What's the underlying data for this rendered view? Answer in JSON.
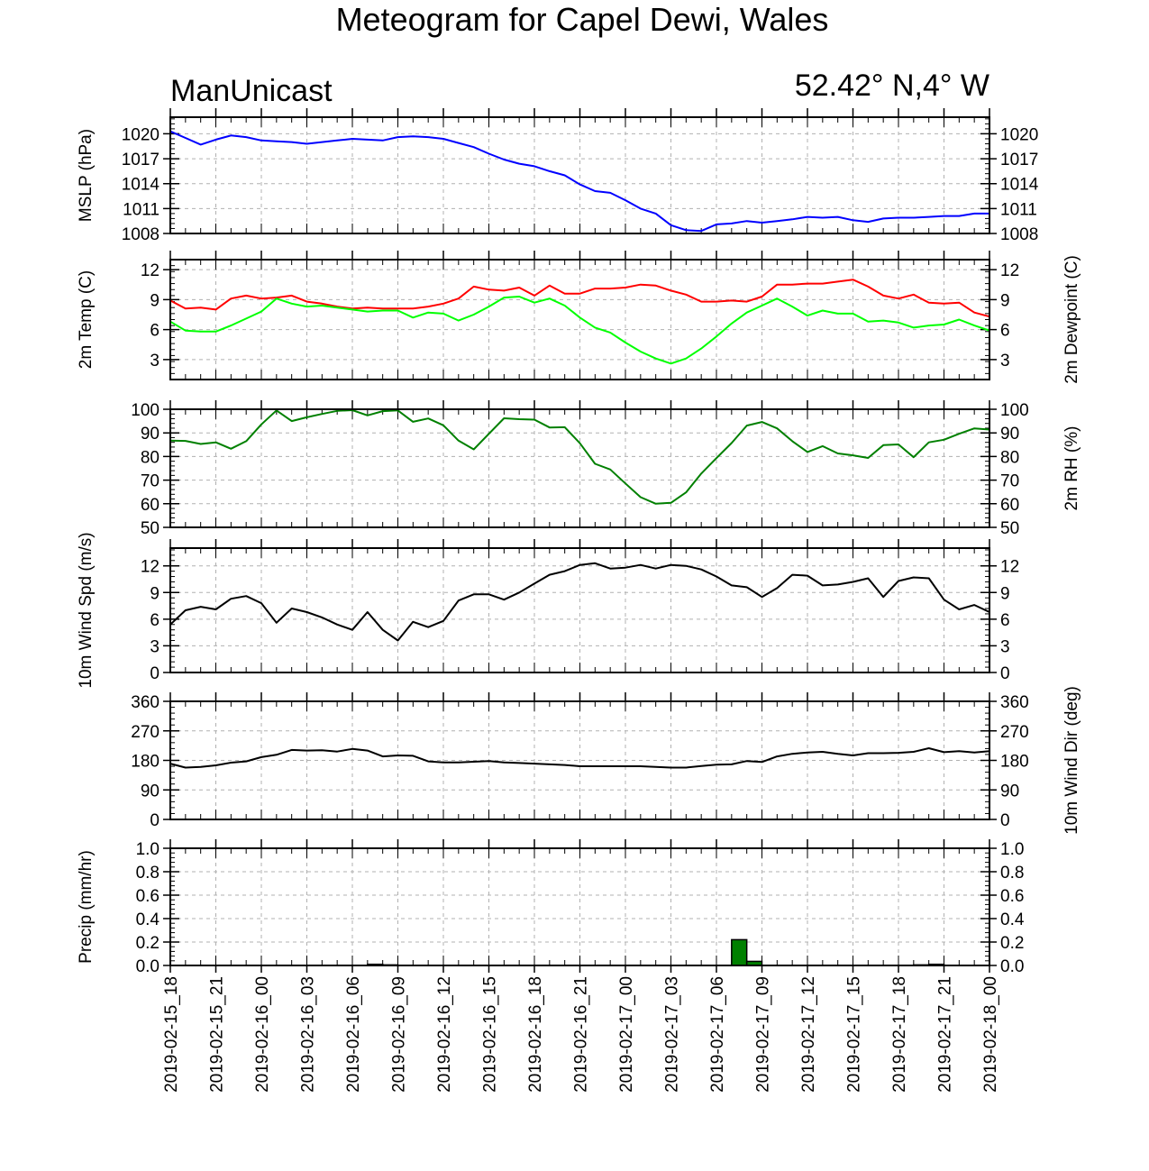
{
  "title": "Meteogram for Capel Dewi, Wales",
  "model_label": "ManUnicast",
  "location_label": "52.42° N,4° W",
  "x_tick_labels": [
    "2019-02-15_18",
    "2019-02-15_21",
    "2019-02-16_00",
    "2019-02-16_03",
    "2019-02-16_06",
    "2019-02-16_09",
    "2019-02-16_12",
    "2019-02-16_15",
    "2019-02-16_18",
    "2019-02-16_21",
    "2019-02-17_00",
    "2019-02-17_03",
    "2019-02-17_06",
    "2019-02-17_09",
    "2019-02-17_12",
    "2019-02-17_15",
    "2019-02-17_18",
    "2019-02-17_21",
    "2019-02-18_00"
  ],
  "chart_data": [
    {
      "type": "line",
      "panel": "mslp",
      "ylabel": "MSLP (hPa)",
      "ylabel_right": "",
      "ylim": [
        1008,
        1022
      ],
      "yticks": [
        1008,
        1011,
        1014,
        1017,
        1020
      ],
      "grid": true,
      "x_hours": [
        0,
        1,
        2,
        3,
        4,
        5,
        6,
        7,
        8,
        9,
        10,
        11,
        12,
        13,
        14,
        15,
        16,
        17,
        18,
        19,
        20,
        21,
        22,
        23,
        24,
        25,
        26,
        27,
        28,
        29,
        30,
        31,
        32,
        33,
        34,
        35,
        36,
        37,
        38,
        39,
        40,
        41,
        42,
        43,
        44,
        45,
        46,
        47,
        48,
        49,
        50,
        51,
        52,
        53,
        54
      ],
      "series": [
        {
          "color": "#0000ff",
          "values": [
            1020.3,
            1019.5,
            1018.7,
            1019.3,
            1019.8,
            1019.6,
            1019.2,
            1019.1,
            1019.0,
            1018.8,
            1019.0,
            1019.2,
            1019.4,
            1019.3,
            1019.2,
            1019.6,
            1019.7,
            1019.6,
            1019.4,
            1018.9,
            1018.4,
            1017.6,
            1016.9,
            1016.4,
            1016.1,
            1015.5,
            1015.0,
            1013.9,
            1013.1,
            1012.9,
            1012.0,
            1011.0,
            1010.4,
            1009.0,
            1008.4,
            1008.3,
            1009.1,
            1009.2,
            1009.5,
            1009.3,
            1009.5,
            1009.7,
            1010.0,
            1009.9,
            1010.0,
            1009.6,
            1009.4,
            1009.8,
            1009.9,
            1009.9,
            1010.0,
            1010.1,
            1010.1,
            1010.4,
            1010.4
          ]
        }
      ]
    },
    {
      "type": "line",
      "panel": "temperature",
      "ylabel": "2m Temp (C)",
      "ylabel_right": "2m Dewpoint (C)",
      "ylim": [
        1,
        13
      ],
      "yticks": [
        3,
        6,
        9,
        12
      ],
      "grid": true,
      "x_hours": [
        0,
        1,
        2,
        3,
        4,
        5,
        6,
        7,
        8,
        9,
        10,
        11,
        12,
        13,
        14,
        15,
        16,
        17,
        18,
        19,
        20,
        21,
        22,
        23,
        24,
        25,
        26,
        27,
        28,
        29,
        30,
        31,
        32,
        33,
        34,
        35,
        36,
        37,
        38,
        39,
        40,
        41,
        42,
        43,
        44,
        45,
        46,
        47,
        48,
        49,
        50,
        51,
        52,
        53,
        54
      ],
      "series": [
        {
          "color": "#ff0000",
          "values": [
            8.9,
            8.1,
            8.2,
            8.0,
            9.1,
            9.4,
            9.1,
            9.2,
            9.4,
            8.8,
            8.6,
            8.3,
            8.1,
            8.2,
            8.1,
            8.1,
            8.1,
            8.3,
            8.6,
            9.1,
            10.3,
            10.0,
            9.9,
            10.2,
            9.4,
            10.4,
            9.6,
            9.6,
            10.1,
            10.1,
            10.2,
            10.5,
            10.4,
            9.9,
            9.5,
            8.8,
            8.8,
            8.9,
            8.8,
            9.3,
            10.5,
            10.5,
            10.6,
            10.6,
            10.8,
            11.0,
            10.3,
            9.4,
            9.1,
            9.5,
            8.7,
            8.6,
            8.7,
            7.7,
            7.3
          ]
        },
        {
          "color": "#00ff00",
          "values": [
            6.8,
            5.9,
            5.8,
            5.8,
            6.4,
            7.1,
            7.8,
            9.1,
            8.6,
            8.3,
            8.4,
            8.2,
            8.0,
            7.8,
            7.9,
            7.9,
            7.2,
            7.7,
            7.6,
            6.9,
            7.5,
            8.3,
            9.2,
            9.3,
            8.7,
            9.1,
            8.4,
            7.2,
            6.2,
            5.7,
            4.7,
            3.8,
            3.1,
            2.6,
            3.1,
            4.1,
            5.3,
            6.6,
            7.7,
            8.4,
            9.1,
            8.3,
            7.4,
            7.9,
            7.6,
            7.6,
            6.8,
            6.9,
            6.7,
            6.2,
            6.4,
            6.5,
            7.0,
            6.4,
            5.9
          ]
        }
      ]
    },
    {
      "type": "line",
      "panel": "relative_humidity",
      "ylabel": "",
      "ylabel_right": "2m RH (%)",
      "ylim": [
        50,
        100
      ],
      "yticks": [
        50,
        60,
        70,
        80,
        90,
        100
      ],
      "grid": true,
      "x_hours": [
        0,
        1,
        2,
        3,
        4,
        5,
        6,
        7,
        8,
        9,
        10,
        11,
        12,
        13,
        14,
        15,
        16,
        17,
        18,
        19,
        20,
        21,
        22,
        23,
        24,
        25,
        26,
        27,
        28,
        29,
        30,
        31,
        32,
        33,
        34,
        35,
        36,
        37,
        38,
        39,
        40,
        41,
        42,
        43,
        44,
        45,
        46,
        47,
        48,
        49,
        50,
        51,
        52,
        53,
        54
      ],
      "series": [
        {
          "color": "#008000",
          "values": [
            86.7,
            86.6,
            85.3,
            86.0,
            83.3,
            86.5,
            93.6,
            99.5,
            95.0,
            96.6,
            98.0,
            99.3,
            99.6,
            97.4,
            99.2,
            99.5,
            94.7,
            96.1,
            93.2,
            86.7,
            83.0,
            89.6,
            96.2,
            95.8,
            95.6,
            92.3,
            92.4,
            85.6,
            76.9,
            74.5,
            68.6,
            62.8,
            60.0,
            60.4,
            64.8,
            72.8,
            79.3,
            85.7,
            93.1,
            94.6,
            91.9,
            86.5,
            81.9,
            84.4,
            81.3,
            80.5,
            79.4,
            84.8,
            85.1,
            79.7,
            86.0,
            87.1,
            89.6,
            91.9,
            91.4
          ]
        }
      ]
    },
    {
      "type": "line",
      "panel": "wind_speed",
      "ylabel": "10m Wind Spd (m/s)",
      "ylabel_right": "",
      "ylim": [
        0,
        14
      ],
      "yticks": [
        0,
        3,
        6,
        9,
        12
      ],
      "grid": true,
      "x_hours": [
        0,
        1,
        2,
        3,
        4,
        5,
        6,
        7,
        8,
        9,
        10,
        11,
        12,
        13,
        14,
        15,
        16,
        17,
        18,
        19,
        20,
        21,
        22,
        23,
        24,
        25,
        26,
        27,
        28,
        29,
        30,
        31,
        32,
        33,
        34,
        35,
        36,
        37,
        38,
        39,
        40,
        41,
        42,
        43,
        44,
        45,
        46,
        47,
        48,
        49,
        50,
        51,
        52,
        53,
        54
      ],
      "series": [
        {
          "color": "#000000",
          "values": [
            5.4,
            7.0,
            7.4,
            7.1,
            8.3,
            8.6,
            7.8,
            5.6,
            7.2,
            6.8,
            6.2,
            5.4,
            4.8,
            6.8,
            4.8,
            3.6,
            5.7,
            5.1,
            5.8,
            8.1,
            8.8,
            8.8,
            8.2,
            9.0,
            10.0,
            11.0,
            11.4,
            12.1,
            12.3,
            11.7,
            11.8,
            12.1,
            11.7,
            12.1,
            12.0,
            11.6,
            10.8,
            9.8,
            9.6,
            8.5,
            9.5,
            11.0,
            10.9,
            9.8,
            9.9,
            10.2,
            10.6,
            8.5,
            10.3,
            10.7,
            10.6,
            8.2,
            7.1,
            7.6,
            6.8
          ]
        }
      ]
    },
    {
      "type": "line",
      "panel": "wind_direction",
      "ylabel": "",
      "ylabel_right": "10m Wind Dir (deg)",
      "ylim": [
        0,
        360
      ],
      "yticks": [
        0,
        90,
        180,
        270,
        360
      ],
      "grid": true,
      "x_hours": [
        0,
        1,
        2,
        3,
        4,
        5,
        6,
        7,
        8,
        9,
        10,
        11,
        12,
        13,
        14,
        15,
        16,
        17,
        18,
        19,
        20,
        21,
        22,
        23,
        24,
        25,
        26,
        27,
        28,
        29,
        30,
        31,
        32,
        33,
        34,
        35,
        36,
        37,
        38,
        39,
        40,
        41,
        42,
        43,
        44,
        45,
        46,
        47,
        48,
        49,
        50,
        51,
        52,
        53,
        54
      ],
      "series": [
        {
          "color": "#000000",
          "values": [
            170,
            158,
            160,
            165,
            173,
            177,
            190,
            197,
            212,
            210,
            211,
            207,
            215,
            210,
            192,
            195,
            194,
            177,
            174,
            174,
            176,
            178,
            174,
            172,
            170,
            168,
            166,
            162,
            162,
            162,
            162,
            162,
            160,
            158,
            158,
            163,
            167,
            168,
            178,
            175,
            192,
            200,
            204,
            206,
            200,
            195,
            202,
            202,
            203,
            206,
            217,
            205,
            208,
            204,
            208
          ]
        }
      ]
    },
    {
      "type": "bar",
      "panel": "precipitation",
      "ylabel": "Precip (mm/hr)",
      "ylabel_right": "",
      "ylim": [
        0,
        1.0
      ],
      "yticks": [
        0.0,
        0.2,
        0.4,
        0.6,
        0.8,
        1.0
      ],
      "grid": true,
      "x_hours": [
        0,
        1,
        2,
        3,
        4,
        5,
        6,
        7,
        8,
        9,
        10,
        11,
        12,
        13,
        14,
        15,
        16,
        17,
        18,
        19,
        20,
        21,
        22,
        23,
        24,
        25,
        26,
        27,
        28,
        29,
        30,
        31,
        32,
        33,
        34,
        35,
        36,
        37,
        38,
        39,
        40,
        41,
        42,
        43,
        44,
        45,
        46,
        47,
        48,
        49,
        50,
        51,
        52,
        53
      ],
      "series": [
        {
          "color": "#008000",
          "values": [
            0,
            0,
            0,
            0,
            0,
            0,
            0,
            0,
            0,
            0,
            0,
            0,
            0,
            0.01,
            0.005,
            0,
            0,
            0,
            0,
            0,
            0,
            0,
            0,
            0,
            0,
            0,
            0,
            0,
            0,
            0,
            0,
            0,
            0,
            0,
            0,
            0,
            0,
            0.22,
            0.035,
            0,
            0,
            0,
            0,
            0,
            0,
            0,
            0,
            0,
            0,
            0.005,
            0.01,
            0,
            0,
            0
          ]
        }
      ]
    }
  ]
}
